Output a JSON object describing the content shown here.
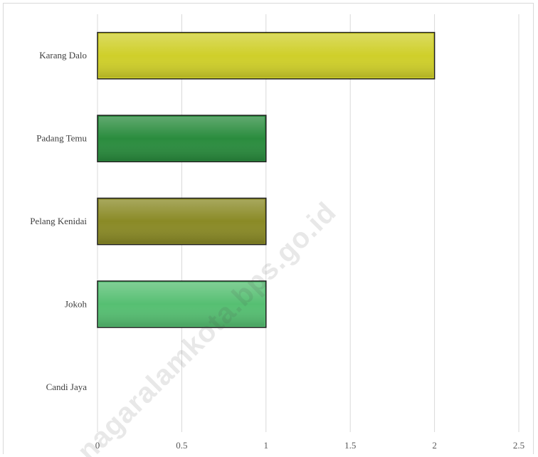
{
  "watermark": "nagaralamkota.bps.go.id",
  "chart_data": {
    "type": "bar",
    "orientation": "horizontal",
    "categories": [
      "Karang Dalo",
      "Padang Temu",
      "Pelang Kenidai",
      "Jokoh",
      "Candi Jaya"
    ],
    "values": [
      2,
      1,
      1,
      1,
      0
    ],
    "bar_colors": [
      "#cfcf2a",
      "#2a8c3e",
      "#8a8a26",
      "#56bf72",
      "#cccccc"
    ],
    "xlim": [
      0,
      2.5
    ],
    "xticks": [
      0,
      0.5,
      1,
      1.5,
      2,
      2.5
    ],
    "xtick_labels": [
      "0",
      "0.5",
      "1",
      "1.5",
      "2",
      "2.5"
    ],
    "title": "",
    "xlabel": "",
    "ylabel": "",
    "grid": "vertical",
    "legend": "none"
  }
}
